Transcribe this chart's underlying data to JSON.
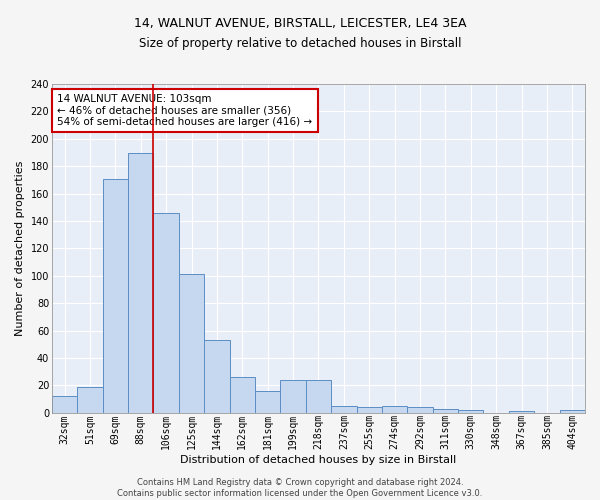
{
  "title1": "14, WALNUT AVENUE, BIRSTALL, LEICESTER, LE4 3EA",
  "title2": "Size of property relative to detached houses in Birstall",
  "xlabel": "Distribution of detached houses by size in Birstall",
  "ylabel": "Number of detached properties",
  "categories": [
    "32sqm",
    "51sqm",
    "69sqm",
    "88sqm",
    "106sqm",
    "125sqm",
    "144sqm",
    "162sqm",
    "181sqm",
    "199sqm",
    "218sqm",
    "237sqm",
    "255sqm",
    "274sqm",
    "292sqm",
    "311sqm",
    "330sqm",
    "348sqm",
    "367sqm",
    "385sqm",
    "404sqm"
  ],
  "values": [
    12,
    19,
    171,
    190,
    146,
    101,
    53,
    26,
    16,
    24,
    24,
    5,
    4,
    5,
    4,
    3,
    2,
    0,
    1,
    0,
    2
  ],
  "bar_color": "#c5d8f0",
  "bar_edge_color": "#5b8ec4",
  "vline_x": 3.5,
  "annotation_text": "14 WALNUT AVENUE: 103sqm\n← 46% of detached houses are smaller (356)\n54% of semi-detached houses are larger (416) →",
  "annotation_box_color": "#ffffff",
  "annotation_box_edge": "#cc0000",
  "vline_color": "#cc0000",
  "background_color": "#e8eef8",
  "grid_color": "#ffffff",
  "footer": "Contains HM Land Registry data © Crown copyright and database right 2024.\nContains public sector information licensed under the Open Government Licence v3.0.",
  "ylim": [
    0,
    240
  ],
  "yticks": [
    0,
    20,
    40,
    60,
    80,
    100,
    120,
    140,
    160,
    180,
    200,
    220,
    240
  ],
  "title1_fontsize": 9,
  "title2_fontsize": 8.5,
  "xlabel_fontsize": 8,
  "ylabel_fontsize": 8,
  "tick_fontsize": 7,
  "annotation_fontsize": 7.5,
  "footer_fontsize": 6
}
